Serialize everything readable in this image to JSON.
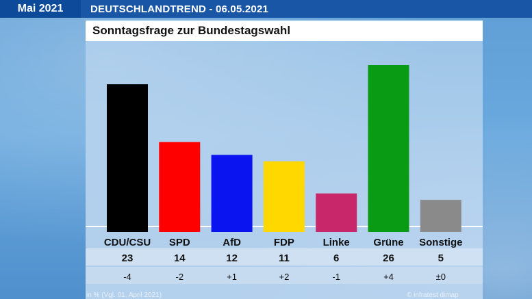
{
  "header": {
    "month": "Mai 2021",
    "trend_title": "DEUTSCHLANDTREND - 06.05.2021",
    "subtitle": "Sonntagsfrage zur Bundestagswahl"
  },
  "footer": {
    "note": "in % (Vgl. 01. April 2021)",
    "source": "© infratest dimap"
  },
  "chart_data": {
    "type": "bar",
    "title": "Sonntagsfrage zur Bundestagswahl",
    "categories": [
      "CDU/CSU",
      "SPD",
      "AfD",
      "FDP",
      "Linke",
      "Grüne",
      "Sonstige"
    ],
    "values": [
      23,
      14,
      12,
      11,
      6,
      26,
      5
    ],
    "changes": [
      "-4",
      "-2",
      "+1",
      "+2",
      "-1",
      "+4",
      "±0"
    ],
    "colors": [
      "#000000",
      "#ff0000",
      "#0a14f0",
      "#ffd800",
      "#c8286a",
      "#0a9b14",
      "#8a8a8a"
    ],
    "ylim": [
      0,
      26
    ],
    "unit": "in %"
  }
}
